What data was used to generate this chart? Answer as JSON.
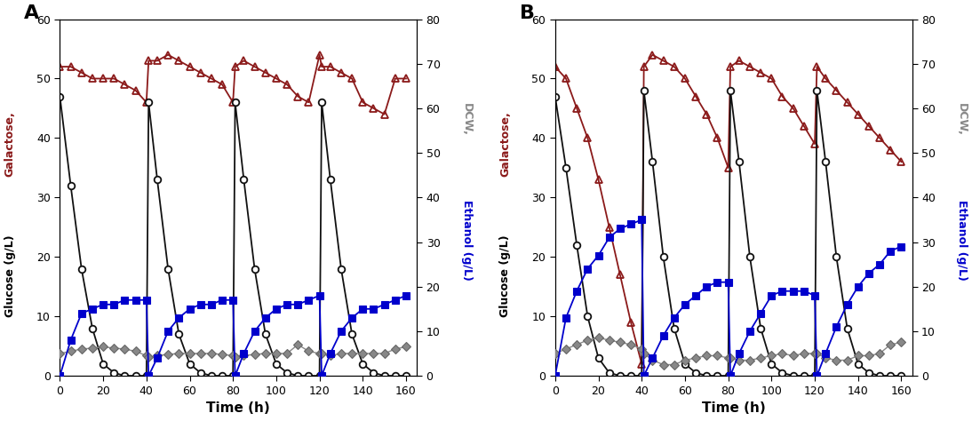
{
  "panel_A": {
    "galactose": {
      "x": [
        0,
        5,
        10,
        15,
        20,
        25,
        30,
        35,
        40,
        41,
        45,
        50,
        55,
        60,
        65,
        70,
        75,
        80,
        81,
        85,
        90,
        95,
        100,
        105,
        110,
        115,
        120,
        121,
        125,
        130,
        135,
        140,
        145,
        150,
        155,
        160
      ],
      "y": [
        52,
        52,
        51,
        50,
        50,
        50,
        49,
        48,
        46,
        53,
        53,
        54,
        53,
        52,
        51,
        50,
        49,
        46,
        52,
        53,
        52,
        51,
        50,
        49,
        47,
        46,
        54,
        52,
        52,
        51,
        50,
        46,
        45,
        44,
        50,
        50
      ]
    },
    "glucose": {
      "x": [
        0,
        5,
        10,
        15,
        20,
        25,
        30,
        35,
        40,
        41,
        45,
        50,
        55,
        60,
        65,
        70,
        75,
        80,
        81,
        85,
        90,
        95,
        100,
        105,
        110,
        115,
        120,
        121,
        125,
        130,
        135,
        140,
        145,
        150,
        155,
        160
      ],
      "y": [
        47,
        32,
        18,
        8,
        2,
        0.5,
        0,
        0,
        0,
        46,
        33,
        18,
        7,
        2,
        0.5,
        0,
        0,
        0,
        46,
        33,
        18,
        7,
        2,
        0.5,
        0,
        0,
        0,
        46,
        33,
        18,
        7,
        2,
        0.5,
        0,
        0,
        0
      ]
    },
    "dcw": {
      "x": [
        0,
        5,
        10,
        15,
        20,
        25,
        30,
        35,
        40,
        41,
        45,
        50,
        55,
        60,
        65,
        70,
        75,
        80,
        81,
        85,
        90,
        95,
        100,
        105,
        110,
        115,
        120,
        121,
        125,
        130,
        135,
        140,
        145,
        150,
        155,
        160
      ],
      "y": [
        5,
        5.5,
        6.0,
        6.2,
        6.5,
        6.2,
        6.0,
        5.5,
        4.5,
        4.2,
        4.5,
        4.8,
        5.0,
        5.0,
        5.0,
        5.0,
        4.8,
        4.5,
        4.2,
        4.5,
        4.8,
        5.0,
        5.0,
        5.0,
        7.0,
        5.5,
        5.0,
        5.0,
        4.5,
        5.0,
        5.0,
        5.0,
        5.0,
        5.0,
        6.0,
        6.5
      ]
    },
    "ethanol": {
      "x": [
        0,
        5,
        10,
        15,
        20,
        25,
        30,
        35,
        40,
        41,
        45,
        50,
        55,
        60,
        65,
        70,
        75,
        80,
        81,
        85,
        90,
        95,
        100,
        105,
        110,
        115,
        120,
        121,
        125,
        130,
        135,
        140,
        145,
        150,
        155,
        160
      ],
      "y": [
        0,
        8,
        14,
        15,
        16,
        16,
        17,
        17,
        17,
        0,
        4,
        10,
        13,
        15,
        16,
        16,
        17,
        17,
        0,
        5,
        10,
        13,
        15,
        16,
        16,
        17,
        18,
        0,
        5,
        10,
        13,
        15,
        15,
        16,
        17,
        18
      ]
    }
  },
  "panel_B": {
    "galactose": {
      "x": [
        0,
        5,
        10,
        15,
        20,
        25,
        30,
        35,
        40,
        41,
        45,
        50,
        55,
        60,
        65,
        70,
        75,
        80,
        81,
        85,
        90,
        95,
        100,
        105,
        110,
        115,
        120,
        121,
        125,
        130,
        135,
        140,
        145,
        150,
        155,
        160
      ],
      "y": [
        52,
        50,
        45,
        40,
        33,
        25,
        17,
        9,
        2,
        52,
        54,
        53,
        52,
        50,
        47,
        44,
        40,
        35,
        52,
        53,
        52,
        51,
        50,
        47,
        45,
        42,
        39,
        52,
        50,
        48,
        46,
        44,
        42,
        40,
        38,
        36
      ]
    },
    "glucose": {
      "x": [
        0,
        5,
        10,
        15,
        20,
        25,
        30,
        35,
        40,
        41,
        45,
        50,
        55,
        60,
        65,
        70,
        75,
        80,
        81,
        85,
        90,
        95,
        100,
        105,
        110,
        115,
        120,
        121,
        125,
        130,
        135,
        140,
        145,
        150,
        155,
        160
      ],
      "y": [
        47,
        35,
        22,
        10,
        3,
        0.5,
        0,
        0,
        0,
        48,
        36,
        20,
        8,
        2,
        0.5,
        0,
        0,
        0,
        48,
        36,
        20,
        8,
        2,
        0.5,
        0,
        0,
        0,
        48,
        36,
        20,
        8,
        2,
        0.5,
        0,
        0,
        0
      ]
    },
    "dcw": {
      "x": [
        0,
        5,
        10,
        15,
        20,
        25,
        30,
        35,
        40,
        41,
        45,
        50,
        55,
        60,
        65,
        70,
        75,
        80,
        81,
        85,
        90,
        95,
        100,
        105,
        110,
        115,
        120,
        121,
        125,
        130,
        135,
        140,
        145,
        150,
        155,
        160
      ],
      "y": [
        5,
        6,
        7,
        8,
        8.5,
        8.0,
        7.5,
        7.0,
        6.0,
        5.0,
        3.5,
        2.5,
        2.5,
        3.5,
        4.0,
        4.5,
        4.5,
        4.0,
        4.0,
        3.5,
        3.5,
        4.0,
        4.5,
        5.0,
        4.5,
        5.0,
        5.0,
        5.0,
        4.0,
        3.5,
        3.5,
        4.5,
        4.5,
        5.0,
        7.0,
        7.5
      ]
    },
    "ethanol": {
      "x": [
        0,
        5,
        10,
        15,
        20,
        25,
        30,
        35,
        40,
        41,
        45,
        50,
        55,
        60,
        65,
        70,
        75,
        80,
        81,
        85,
        90,
        95,
        100,
        105,
        110,
        115,
        120,
        121,
        125,
        130,
        135,
        140,
        145,
        150,
        155,
        160
      ],
      "y": [
        0,
        13,
        19,
        24,
        27,
        31,
        33,
        34,
        35,
        0,
        4,
        9,
        13,
        16,
        18,
        20,
        21,
        21,
        0,
        5,
        10,
        14,
        18,
        19,
        19,
        19,
        18,
        0,
        5,
        11,
        16,
        20,
        23,
        25,
        28,
        29
      ]
    }
  },
  "colors": {
    "galactose": "#8B1A1A",
    "glucose": "#111111",
    "dcw": "#888888",
    "ethanol": "#0000CC"
  },
  "ylim_left": [
    0,
    60
  ],
  "ylim_right": [
    0,
    80
  ],
  "xlim": [
    0,
    165
  ],
  "xlabel": "Time (h)",
  "ylabel_left_red": "Galactose,",
  "ylabel_left_black": " Glucose (g/L)",
  "ylabel_right_gray": "DCW,",
  "ylabel_right_blue": " Ethanol (g/L)",
  "xticks": [
    0,
    20,
    40,
    60,
    80,
    100,
    120,
    140,
    160
  ],
  "yticks_left": [
    0,
    10,
    20,
    30,
    40,
    50,
    60
  ],
  "yticks_right": [
    0,
    10,
    20,
    30,
    40,
    50,
    60,
    70,
    80
  ],
  "panel_labels": [
    "A",
    "B"
  ]
}
